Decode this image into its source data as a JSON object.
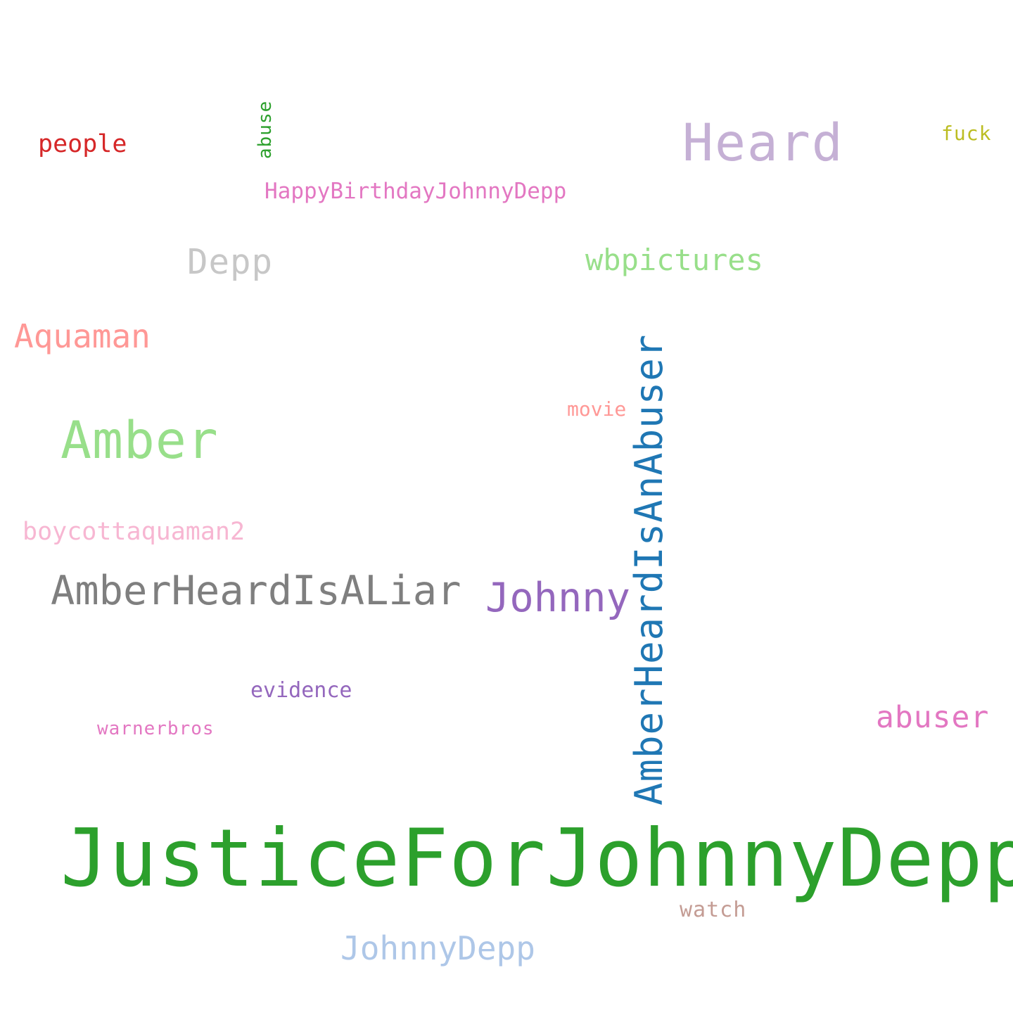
{
  "cloud": {
    "words": [
      {
        "key": "justiceforjohnnydepp",
        "text": "JusticeForJohnnyDepp",
        "color": "#2ca02c",
        "orientation": "horizontal"
      },
      {
        "key": "amberheardisanabuser",
        "text": "AmberHeardIsAnAbuser",
        "color": "#1f77b4",
        "orientation": "vertical"
      },
      {
        "key": "heard",
        "text": "Heard",
        "color": "#c5b0d5",
        "orientation": "horizontal"
      },
      {
        "key": "amber",
        "text": "Amber",
        "color": "#98df8a",
        "orientation": "horizontal"
      },
      {
        "key": "amberheardisaliar",
        "text": "AmberHeardIsALiar",
        "color": "#7f7f7f",
        "orientation": "horizontal"
      },
      {
        "key": "johnny",
        "text": "Johnny",
        "color": "#9467bd",
        "orientation": "horizontal"
      },
      {
        "key": "depp",
        "text": "Depp",
        "color": "#c7c7c7",
        "orientation": "horizontal"
      },
      {
        "key": "aquaman",
        "text": "Aquaman",
        "color": "#ff9896",
        "orientation": "horizontal"
      },
      {
        "key": "wbpictures",
        "text": "wbpictures",
        "color": "#98df8a",
        "orientation": "horizontal"
      },
      {
        "key": "johnnydepp",
        "text": "JohnnyDepp",
        "color": "#aec7e8",
        "orientation": "horizontal"
      },
      {
        "key": "abuser",
        "text": "abuser",
        "color": "#e377c2",
        "orientation": "horizontal"
      },
      {
        "key": "boycottaquaman2",
        "text": "boycottaquaman2",
        "color": "#f7b6d2",
        "orientation": "horizontal"
      },
      {
        "key": "happybirthday",
        "text": "HappyBirthdayJohnnyDepp",
        "color": "#e377c2",
        "orientation": "horizontal"
      },
      {
        "key": "people",
        "text": "people",
        "color": "#d62728",
        "orientation": "horizontal"
      },
      {
        "key": "evidence",
        "text": "evidence",
        "color": "#9467bd",
        "orientation": "horizontal"
      },
      {
        "key": "watch",
        "text": "watch",
        "color": "#c49c94",
        "orientation": "horizontal"
      },
      {
        "key": "warnerbros",
        "text": "warnerbros",
        "color": "#e377c2",
        "orientation": "horizontal"
      },
      {
        "key": "movie",
        "text": "movie",
        "color": "#ff9896",
        "orientation": "horizontal"
      },
      {
        "key": "fuck",
        "text": "fuck",
        "color": "#bcbd22",
        "orientation": "horizontal"
      },
      {
        "key": "abuse",
        "text": "abuse",
        "color": "#2ca02c",
        "orientation": "vertical"
      }
    ]
  }
}
